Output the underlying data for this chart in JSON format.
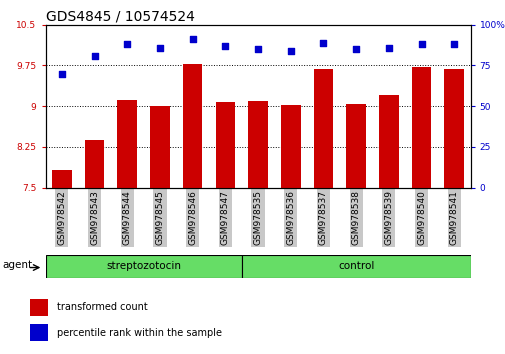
{
  "title": "GDS4845 / 10574524",
  "samples": [
    "GSM978542",
    "GSM978543",
    "GSM978544",
    "GSM978545",
    "GSM978546",
    "GSM978547",
    "GSM978535",
    "GSM978536",
    "GSM978537",
    "GSM978538",
    "GSM978539",
    "GSM978540",
    "GSM978541"
  ],
  "bar_values": [
    7.82,
    8.38,
    9.12,
    9.0,
    9.78,
    9.08,
    9.1,
    9.02,
    9.68,
    9.04,
    9.2,
    9.72,
    9.68
  ],
  "percentile_values": [
    70,
    81,
    88,
    86,
    91,
    87,
    85,
    84,
    89,
    85,
    86,
    88,
    88
  ],
  "bar_color": "#cc0000",
  "dot_color": "#0000cc",
  "ylim_left": [
    7.5,
    10.5
  ],
  "ylim_right": [
    0,
    100
  ],
  "yticks_left": [
    7.5,
    8.25,
    9.0,
    9.75,
    10.5
  ],
  "yticks_right": [
    0,
    25,
    50,
    75,
    100
  ],
  "ytick_labels_left": [
    "7.5",
    "8.25",
    "9",
    "9.75",
    "10.5"
  ],
  "ytick_labels_right": [
    "0",
    "25",
    "50",
    "75",
    "100%"
  ],
  "grid_lines": [
    8.25,
    9.0,
    9.75
  ],
  "group_streptozotocin": [
    0,
    1,
    2,
    3,
    4,
    5
  ],
  "group_control": [
    6,
    7,
    8,
    9,
    10,
    11,
    12
  ],
  "group_streptozotocin_label": "streptozotocin",
  "group_control_label": "control",
  "agent_label": "agent",
  "legend_bar_label": "transformed count",
  "legend_dot_label": "percentile rank within the sample",
  "bar_width": 0.6,
  "background_color": "#ffffff",
  "plot_bg_color": "#ffffff",
  "tick_bg_color": "#c8c8c8",
  "group_bg_color": "#66dd66",
  "title_fontsize": 10,
  "tick_label_fontsize": 6.5,
  "axis_label_fontsize": 8
}
